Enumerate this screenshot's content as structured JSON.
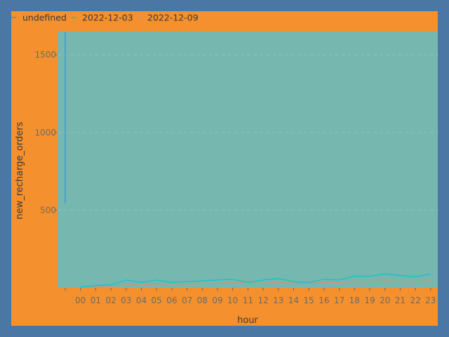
{
  "colors": {
    "page_background": "#4b77a5",
    "frame_background": "#f5902e",
    "plot_background": "#76b8b0",
    "series_undefined": "#3a93d2",
    "series_2022_12_03": "#12c3c9",
    "series_2022_12_09": "#d4906f"
  },
  "chart_data": {
    "type": "line",
    "title": "",
    "xlabel": "hour",
    "ylabel": "new_recharge_orders",
    "categories": [
      "",
      "00",
      "01",
      "02",
      "03",
      "04",
      "05",
      "06",
      "07",
      "08",
      "09",
      "10",
      "11",
      "12",
      "13",
      "14",
      "15",
      "16",
      "17",
      "18",
      "19",
      "20",
      "21",
      "22",
      "23"
    ],
    "yticks": [
      500,
      1000,
      1500
    ],
    "ylim": [
      0,
      1650
    ],
    "grid": true,
    "legend_position": "top-left",
    "series": [
      {
        "name": "undefined",
        "color": "#3a93d2",
        "values": [
          1650,
          null,
          null,
          null,
          null,
          null,
          null,
          null,
          null,
          null,
          null,
          null,
          null,
          null,
          null,
          null,
          null,
          null,
          null,
          null,
          null,
          null,
          null,
          null,
          null
        ],
        "low": 545
      },
      {
        "name": "2022-12-03",
        "color": "#12c3c9",
        "values": [
          null,
          5,
          15,
          20,
          50,
          35,
          50,
          35,
          40,
          45,
          50,
          55,
          35,
          50,
          60,
          40,
          35,
          55,
          50,
          75,
          75,
          90,
          80,
          70,
          90
        ]
      },
      {
        "name": "2022-12-09",
        "color": "#d4906f",
        "values": [
          null,
          0,
          5,
          10,
          20,
          20,
          25,
          25,
          25,
          30,
          30,
          35,
          30,
          30,
          35,
          30,
          30,
          35,
          35,
          40,
          40,
          45,
          40,
          40,
          45
        ]
      }
    ]
  }
}
